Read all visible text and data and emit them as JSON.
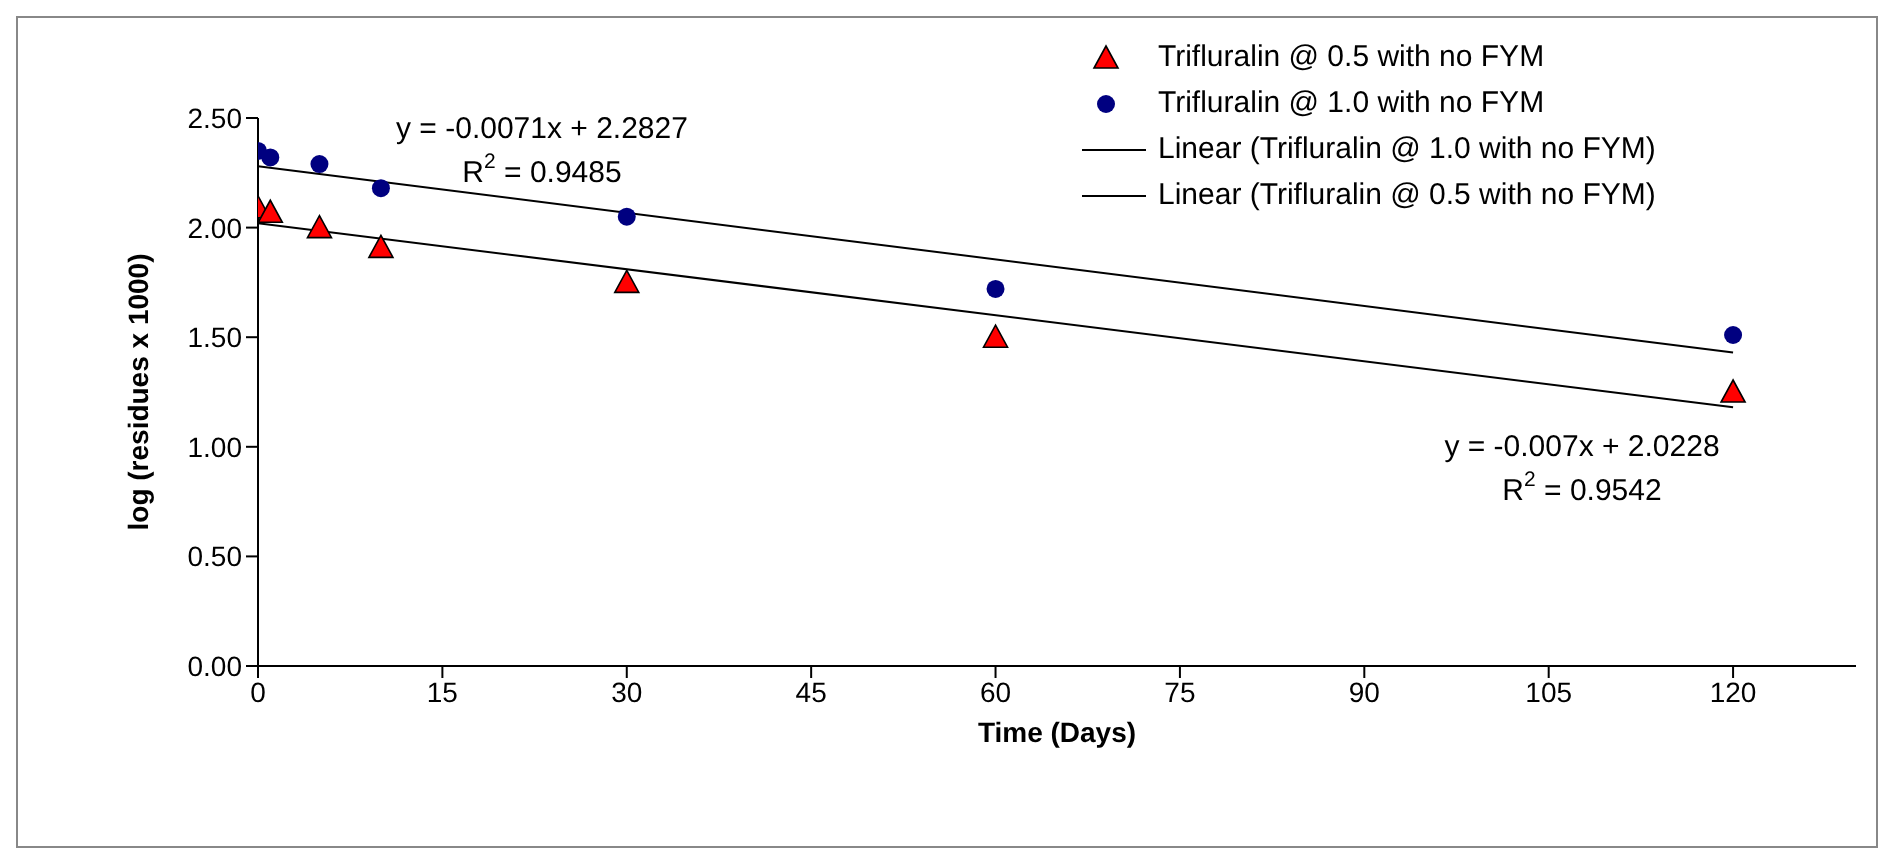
{
  "chart_data": {
    "type": "scatter",
    "xlabel": "Time (Days)",
    "ylabel": "log (residues x 1000)",
    "series": [
      {
        "name": "Trifluralin @ 0.5 with no FYM",
        "color": "#ff0000",
        "marker": "triangle",
        "x": [
          0,
          1,
          5,
          10,
          30,
          60,
          120
        ],
        "values": [
          2.09,
          2.07,
          2.0,
          1.91,
          1.75,
          1.5,
          1.25
        ]
      },
      {
        "name": "Trifluralin @ 1.0 with no FYM",
        "color": "#000080",
        "marker": "circle",
        "x": [
          0,
          1,
          5,
          10,
          30,
          60,
          120
        ],
        "values": [
          2.35,
          2.32,
          2.29,
          2.18,
          2.05,
          1.72,
          1.51
        ]
      },
      {
        "name": "Linear (Trifluralin @ 1.0 with no FYM)",
        "type": "line",
        "color": "#000000",
        "marker": "none",
        "x": [
          0,
          120
        ],
        "values": [
          2.28,
          1.43
        ]
      },
      {
        "name": "Linear (Trifluralin @ 0.5 with no FYM)",
        "type": "line",
        "color": "#000000",
        "marker": "none",
        "x": [
          0,
          120
        ],
        "values": [
          2.02,
          1.18
        ]
      }
    ],
    "xlim": [
      0,
      130
    ],
    "xticks": [
      0,
      15,
      30,
      45,
      60,
      75,
      90,
      105,
      120
    ],
    "ylim": [
      0,
      2.5
    ],
    "yticks": [
      {
        "value": 0,
        "label": "0.00"
      },
      {
        "value": 0.5,
        "label": "0.50"
      },
      {
        "value": 1,
        "label": "1.00"
      },
      {
        "value": 1.5,
        "label": "1.50"
      },
      {
        "value": 2,
        "label": "2.00"
      },
      {
        "value": 2.5,
        "label": "2.50"
      }
    ],
    "annotations": [
      "y = -0.0071x + 2.2827",
      "R$^{2}$ = 0.9485",
      "y = -0.007x + 2.0228",
      "R$^{2}$ = 0.9542"
    ],
    "grid": false,
    "legend": "top right"
  }
}
